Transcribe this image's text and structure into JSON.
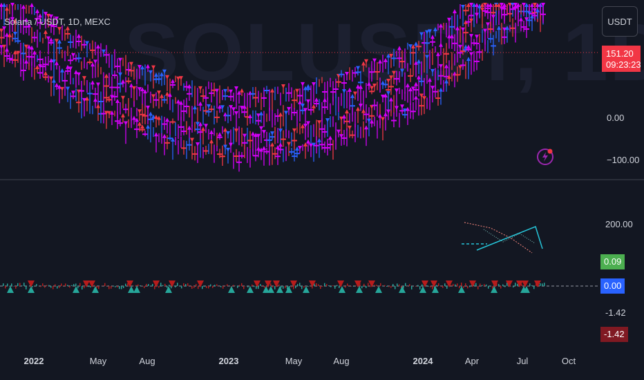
{
  "chart": {
    "symbol_title": "Solana / USDT, 1D, MEXC",
    "watermark": "SOLUSDT, 1D",
    "currency_button": "USDT",
    "price_tag": {
      "price": "151.20",
      "countdown": "09:23:23"
    },
    "main_axis_labels": [
      "0.00",
      "−100.00"
    ],
    "indicator_axis": {
      "top_label": "200.00",
      "tag_green": "0.09",
      "tag_blue": "0.00",
      "plain_label": "-1.42",
      "tag_red": "-1.42"
    },
    "time_axis": [
      {
        "label": "2022",
        "bold": true
      },
      {
        "label": "May",
        "bold": false
      },
      {
        "label": "Aug",
        "bold": false
      },
      {
        "label": "2023",
        "bold": true
      },
      {
        "label": "May",
        "bold": false
      },
      {
        "label": "Aug",
        "bold": false
      },
      {
        "label": "2024",
        "bold": true
      },
      {
        "label": "Apr",
        "bold": false
      },
      {
        "label": "Jul",
        "bold": false
      },
      {
        "label": "Oct",
        "bold": false
      }
    ],
    "colors": {
      "background": "#131722",
      "bull": "#2962ff",
      "bear": "#f23645",
      "neutral": "#d500f9",
      "arrow_up": "#26a69a",
      "arrow_down": "#b71c1c",
      "line": "#26c6da"
    },
    "icons": [
      "lightning-icon"
    ]
  }
}
